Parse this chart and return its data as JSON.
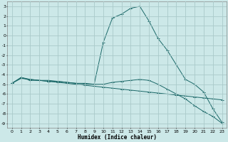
{
  "xlabel": "Humidex (Indice chaleur)",
  "background_color": "#cce8e8",
  "grid_color": "#aacaca",
  "line_color": "#1a6868",
  "xlim": [
    -0.5,
    23.5
  ],
  "ylim": [
    -9.5,
    3.5
  ],
  "xticks": [
    0,
    1,
    2,
    3,
    4,
    5,
    6,
    7,
    8,
    9,
    10,
    11,
    12,
    13,
    14,
    15,
    16,
    17,
    18,
    19,
    20,
    21,
    22,
    23
  ],
  "yticks": [
    3,
    2,
    1,
    0,
    -1,
    -2,
    -3,
    -4,
    -5,
    -6,
    -7,
    -8,
    -9
  ],
  "line1_x": [
    0,
    1,
    2,
    3,
    4,
    5,
    6,
    7,
    8,
    9,
    10,
    11,
    12,
    13,
    14,
    15,
    16,
    17,
    18,
    19,
    20,
    21,
    22,
    23
  ],
  "line1_y": [
    -4.9,
    -4.4,
    -4.5,
    -4.6,
    -4.7,
    -4.8,
    -4.9,
    -5.0,
    -5.1,
    -5.2,
    -5.3,
    -5.4,
    -5.5,
    -5.6,
    -5.7,
    -5.8,
    -5.9,
    -6.0,
    -6.1,
    -6.2,
    -6.3,
    -6.4,
    -6.5,
    -6.6
  ],
  "line2_x": [
    0,
    1,
    2,
    3,
    4,
    5,
    6,
    7,
    8,
    9,
    10,
    11,
    12,
    13,
    14,
    15,
    16,
    17,
    18,
    19,
    20,
    21,
    22,
    23
  ],
  "line2_y": [
    -4.9,
    -4.3,
    -4.6,
    -4.6,
    -4.7,
    -4.7,
    -4.8,
    -4.9,
    -4.9,
    -5.0,
    -5.0,
    -4.8,
    -4.7,
    -4.6,
    -4.5,
    -4.6,
    -5.0,
    -5.5,
    -6.0,
    -6.5,
    -7.2,
    -7.8,
    -8.3,
    -9.0
  ],
  "line3_x": [
    0,
    1,
    2,
    3,
    4,
    5,
    6,
    7,
    8,
    9,
    10,
    11,
    12,
    13,
    14,
    15,
    16,
    17,
    18,
    19,
    20,
    21,
    22,
    23
  ],
  "line3_y": [
    -4.9,
    -4.3,
    -4.5,
    -4.6,
    -4.6,
    -4.7,
    -4.8,
    -4.9,
    -5.0,
    -5.0,
    -0.7,
    1.8,
    2.2,
    2.8,
    3.0,
    1.5,
    -0.3,
    -1.5,
    -3.0,
    -4.5,
    -5.0,
    -5.8,
    -7.5,
    -8.9
  ],
  "xlabel_fontsize": 5.5,
  "tick_fontsize": 4.5,
  "lw": 0.7,
  "ms": 2.5
}
